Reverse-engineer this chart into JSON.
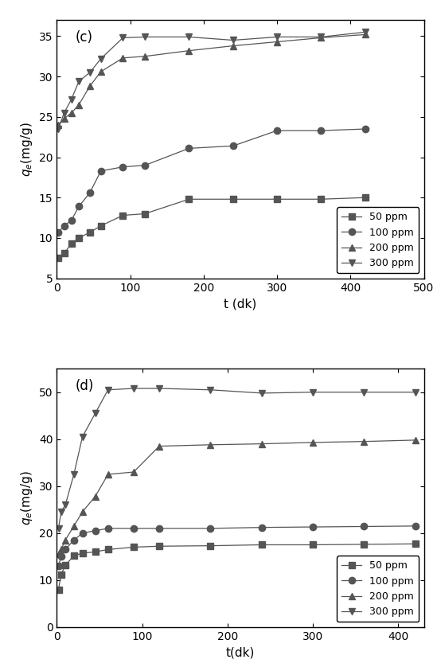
{
  "panel_c": {
    "label": "(c)",
    "xlabel": "t (dk)",
    "xlim": [
      0,
      500
    ],
    "ylim": [
      5,
      37
    ],
    "yticks": [
      5,
      10,
      15,
      20,
      25,
      30,
      35
    ],
    "xticks": [
      0,
      100,
      200,
      300,
      400,
      500
    ],
    "series": [
      {
        "label": "50 ppm",
        "marker": "s",
        "x": [
          2,
          10,
          20,
          30,
          45,
          60,
          90,
          120,
          180,
          240,
          300,
          360,
          420
        ],
        "y": [
          7.5,
          8.1,
          9.3,
          10.0,
          10.7,
          11.5,
          12.8,
          13.0,
          14.8,
          14.8,
          14.8,
          14.8,
          15.0
        ]
      },
      {
        "label": "100 ppm",
        "marker": "o",
        "x": [
          2,
          10,
          20,
          30,
          45,
          60,
          90,
          120,
          180,
          240,
          300,
          360,
          420
        ],
        "y": [
          10.7,
          11.5,
          12.2,
          13.9,
          15.6,
          18.3,
          18.8,
          19.0,
          21.1,
          21.4,
          23.3,
          23.3,
          23.5
        ]
      },
      {
        "label": "200 ppm",
        "marker": "^",
        "x": [
          2,
          10,
          20,
          30,
          45,
          60,
          90,
          120,
          180,
          240,
          300,
          360,
          420
        ],
        "y": [
          24.0,
          24.8,
          25.5,
          26.5,
          28.8,
          30.6,
          32.3,
          32.5,
          33.2,
          33.8,
          34.3,
          34.8,
          35.2
        ]
      },
      {
        "label": "300 ppm",
        "marker": "v",
        "x": [
          2,
          10,
          20,
          30,
          45,
          60,
          90,
          120,
          180,
          240,
          300,
          360,
          420
        ],
        "y": [
          23.5,
          25.5,
          27.2,
          29.4,
          30.5,
          32.2,
          34.8,
          34.9,
          34.9,
          34.5,
          34.9,
          34.9,
          35.5
        ]
      }
    ]
  },
  "panel_d": {
    "label": "(d)",
    "xlabel": "t(dk)",
    "xlim": [
      0,
      430
    ],
    "ylim": [
      0,
      55
    ],
    "yticks": [
      0,
      10,
      20,
      30,
      40,
      50
    ],
    "xticks": [
      0,
      100,
      200,
      300,
      400
    ],
    "series": [
      {
        "label": "50 ppm",
        "marker": "s",
        "x": [
          2,
          5,
          10,
          20,
          30,
          45,
          60,
          90,
          120,
          180,
          240,
          300,
          360,
          420
        ],
        "y": [
          8.0,
          11.2,
          13.1,
          15.2,
          15.7,
          16.0,
          16.5,
          17.0,
          17.2,
          17.3,
          17.5,
          17.5,
          17.6,
          17.7
        ]
      },
      {
        "label": "100 ppm",
        "marker": "o",
        "x": [
          2,
          5,
          10,
          20,
          30,
          45,
          60,
          90,
          120,
          180,
          240,
          300,
          360,
          420
        ],
        "y": [
          13.0,
          15.0,
          16.5,
          18.5,
          20.0,
          20.5,
          21.0,
          21.0,
          21.0,
          21.0,
          21.2,
          21.3,
          21.4,
          21.5
        ]
      },
      {
        "label": "200 ppm",
        "marker": "^",
        "x": [
          2,
          5,
          10,
          20,
          30,
          45,
          60,
          90,
          120,
          180,
          240,
          300,
          360,
          420
        ],
        "y": [
          15.5,
          16.5,
          18.5,
          21.5,
          24.5,
          27.8,
          32.5,
          33.0,
          38.5,
          38.8,
          39.0,
          39.3,
          39.5,
          39.8
        ]
      },
      {
        "label": "300 ppm",
        "marker": "v",
        "x": [
          2,
          5,
          10,
          20,
          30,
          45,
          60,
          90,
          120,
          180,
          240,
          300,
          360,
          420
        ],
        "y": [
          21.0,
          24.5,
          26.0,
          32.5,
          40.5,
          45.5,
          50.5,
          50.8,
          50.8,
          50.5,
          49.8,
          50.0,
          50.0,
          50.0
        ]
      }
    ]
  },
  "line_color": "#555555",
  "marker_fill": "#555555",
  "marker_size": 6,
  "legend_fontsize": 9,
  "label_fontsize": 11,
  "tick_fontsize": 10
}
